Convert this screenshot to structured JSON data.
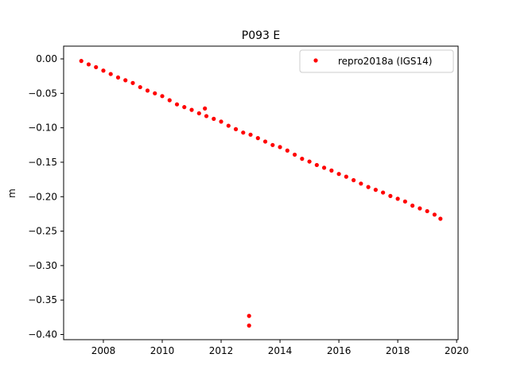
{
  "chart_data": {
    "type": "scatter",
    "title": "P093 E",
    "xlabel": "",
    "ylabel": "m",
    "xlim": [
      2006.65,
      2020.05
    ],
    "ylim": [
      -0.4075,
      0.0185
    ],
    "xticks": [
      2008,
      2010,
      2012,
      2014,
      2016,
      2018,
      2020
    ],
    "xtick_labels": [
      "2008",
      "2010",
      "2012",
      "2014",
      "2016",
      "2018",
      "2020"
    ],
    "yticks": [
      0.0,
      -0.05,
      -0.1,
      -0.15,
      -0.2,
      -0.25,
      -0.3,
      -0.35,
      -0.4
    ],
    "ytick_labels": [
      "0.00",
      "−0.05",
      "−0.10",
      "−0.15",
      "−0.20",
      "−0.25",
      "−0.30",
      "−0.35",
      "−0.40"
    ],
    "grid": false,
    "legend_position": "top-right",
    "series": [
      {
        "name": "repro2018a (IGS14)",
        "color": "#ff0000",
        "marker": "dot",
        "x": [
          2007.25,
          2007.5,
          2007.75,
          2008.0,
          2008.25,
          2008.5,
          2008.75,
          2009.0,
          2009.25,
          2009.5,
          2009.75,
          2010.0,
          2010.25,
          2010.5,
          2010.75,
          2011.0,
          2011.25,
          2011.5,
          2011.75,
          2012.0,
          2012.25,
          2012.5,
          2012.75,
          2013.0,
          2013.25,
          2013.5,
          2013.75,
          2014.0,
          2014.25,
          2014.5,
          2014.75,
          2015.0,
          2015.25,
          2015.5,
          2015.75,
          2016.0,
          2016.25,
          2016.5,
          2016.75,
          2017.0,
          2017.25,
          2017.5,
          2017.75,
          2018.0,
          2018.25,
          2018.5,
          2018.75,
          2019.0,
          2019.25,
          2019.45,
          2011.45,
          2012.95,
          2012.95
        ],
        "y": [
          -0.003,
          -0.008,
          -0.012,
          -0.017,
          -0.022,
          -0.027,
          -0.031,
          -0.035,
          -0.041,
          -0.046,
          -0.05,
          -0.054,
          -0.06,
          -0.066,
          -0.07,
          -0.074,
          -0.079,
          -0.083,
          -0.087,
          -0.091,
          -0.097,
          -0.102,
          -0.107,
          -0.11,
          -0.115,
          -0.12,
          -0.125,
          -0.128,
          -0.133,
          -0.139,
          -0.145,
          -0.149,
          -0.154,
          -0.158,
          -0.162,
          -0.167,
          -0.171,
          -0.176,
          -0.181,
          -0.186,
          -0.19,
          -0.194,
          -0.199,
          -0.203,
          -0.207,
          -0.213,
          -0.217,
          -0.221,
          -0.226,
          -0.232,
          -0.072,
          -0.373,
          -0.387
        ]
      }
    ]
  }
}
